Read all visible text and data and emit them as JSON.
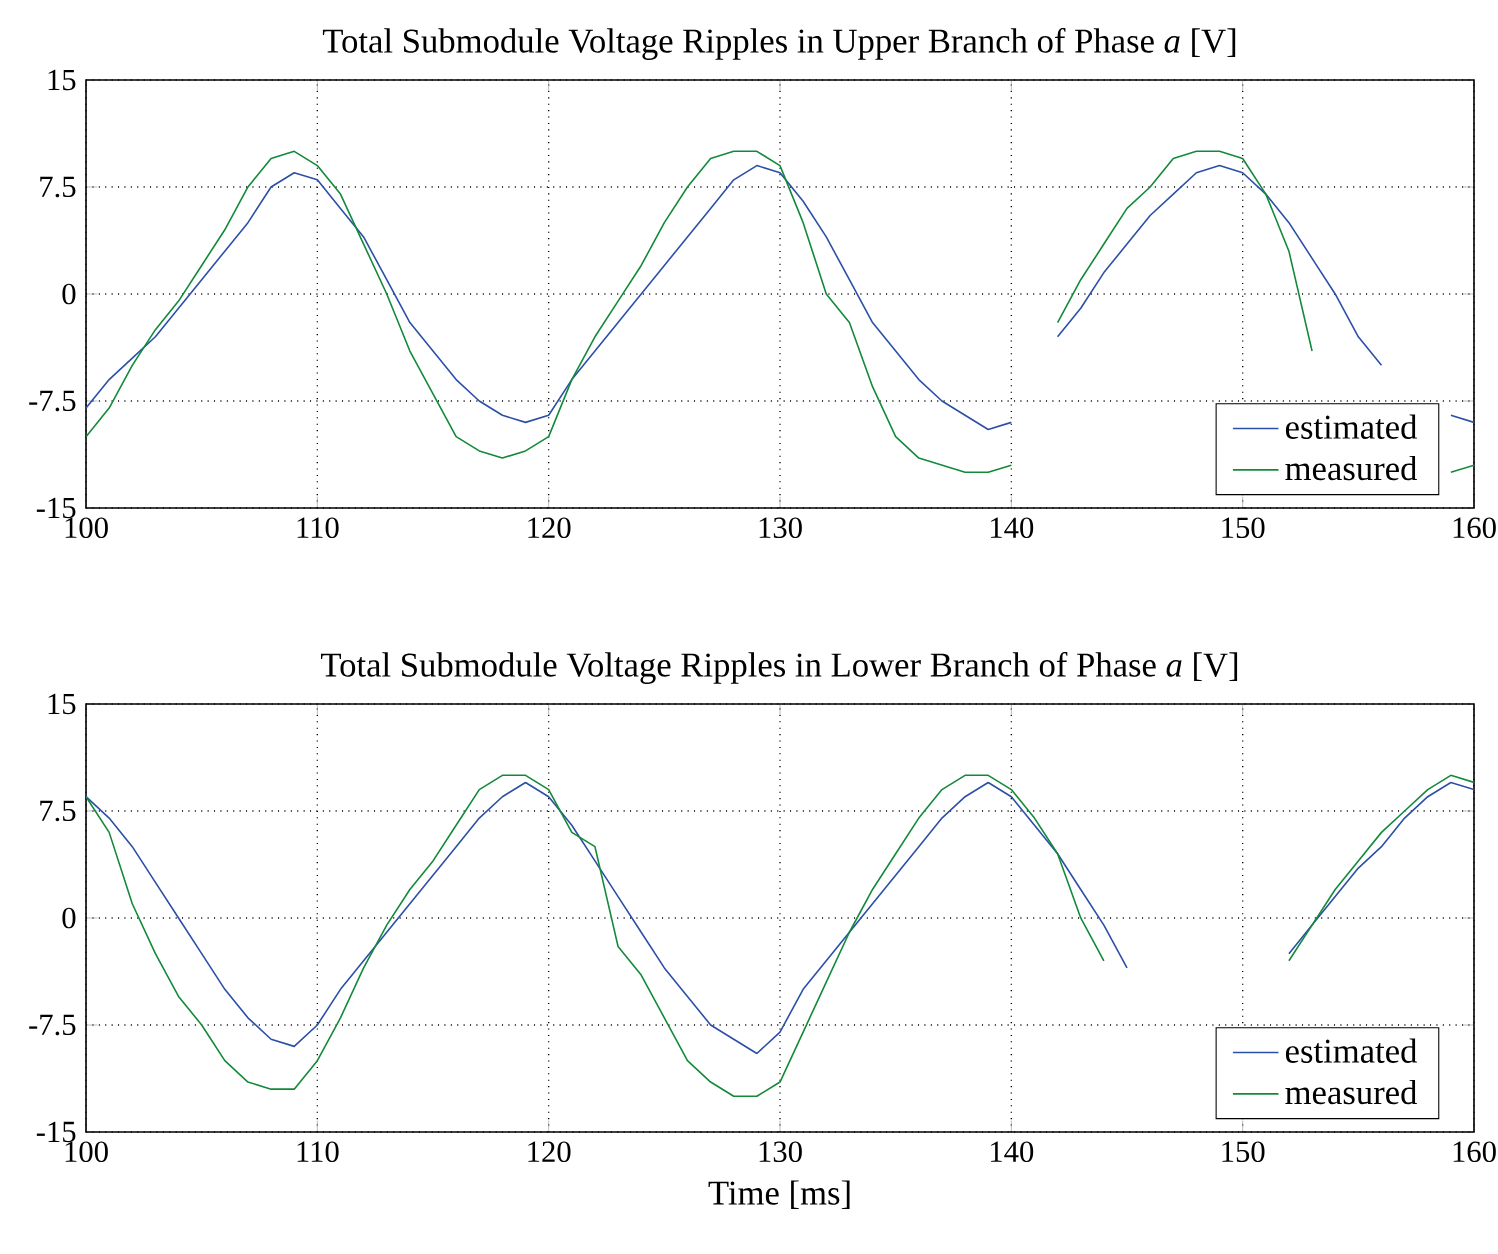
{
  "chart_data": [
    {
      "type": "line",
      "title": "Total Submodule Voltage Ripples in Upper Branch of Phase *a* [V]",
      "x": [
        100,
        101,
        102,
        103,
        104,
        105,
        106,
        107,
        108,
        109,
        110,
        111,
        112,
        113,
        114,
        115,
        116,
        117,
        118,
        119,
        120,
        121,
        122,
        123,
        124,
        125,
        126,
        127,
        128,
        129,
        130,
        131,
        132,
        133,
        134,
        135,
        136,
        137,
        138,
        139,
        140,
        141,
        142,
        143,
        144,
        145,
        146,
        147,
        148,
        149,
        150,
        151,
        152,
        153,
        154,
        155,
        156,
        157,
        158,
        159,
        160
      ],
      "series": [
        {
          "name": "estimated",
          "color": "#2c4fa8",
          "values": [
            -8,
            -6,
            -4.5,
            -3,
            -1,
            1,
            3,
            5,
            7.5,
            8.5,
            8,
            6,
            4,
            1,
            -2,
            -4,
            -6,
            -7.5,
            -8.5,
            -9,
            -8.5,
            -6,
            -4,
            -2,
            0,
            2,
            4,
            6,
            8,
            9,
            8.5,
            6.5,
            4,
            1,
            -2,
            -4,
            -6,
            -7.5,
            -8.5,
            -9.5,
            -9,
            null,
            -3,
            -1,
            1.5,
            3.5,
            5.5,
            7,
            8.5,
            9,
            8.5,
            7,
            5,
            2.5,
            0,
            -3,
            -5,
            null,
            null,
            -8.5,
            -9
          ]
        },
        {
          "name": "measured",
          "color": "#138a3a",
          "values": [
            -10,
            -8,
            -5,
            -2.5,
            -0.5,
            2,
            4.5,
            7.5,
            9.5,
            10,
            9,
            7,
            3.5,
            0,
            -4,
            -7,
            -10,
            -11,
            -11.5,
            -11,
            -10,
            -6,
            -3,
            -0.5,
            2,
            5,
            7.5,
            9.5,
            10,
            10,
            9,
            5,
            0,
            -2,
            -6.5,
            -10,
            -11.5,
            -12,
            -12.5,
            -12.5,
            -12,
            null,
            -2,
            1,
            3.5,
            6,
            7.5,
            9.5,
            10,
            10,
            9.5,
            7,
            3,
            -4,
            null,
            null,
            null,
            null,
            null,
            -12.5,
            -12
          ]
        }
      ],
      "xlim": [
        100,
        160
      ],
      "ylim": [
        -15,
        15
      ],
      "xticks": [
        100,
        110,
        120,
        130,
        140,
        150,
        160
      ],
      "yticks": [
        -15,
        -7.5,
        0,
        7.5,
        15
      ],
      "grid": true,
      "legend": "bottom right",
      "line_style": "solid",
      "marker": "none"
    },
    {
      "type": "line",
      "title": "Total Submodule Voltage Ripples in Lower Branch of Phase *a* [V]",
      "xlabel": "Time [ms]",
      "x": [
        100,
        101,
        102,
        103,
        104,
        105,
        106,
        107,
        108,
        109,
        110,
        111,
        112,
        113,
        114,
        115,
        116,
        117,
        118,
        119,
        120,
        121,
        122,
        123,
        124,
        125,
        126,
        127,
        128,
        129,
        130,
        131,
        132,
        133,
        134,
        135,
        136,
        137,
        138,
        139,
        140,
        141,
        142,
        143,
        144,
        145,
        146,
        147,
        148,
        149,
        150,
        151,
        152,
        153,
        154,
        155,
        156,
        157,
        158,
        159,
        160
      ],
      "series": [
        {
          "name": "estimated",
          "color": "#2c4fa8",
          "values": [
            8.5,
            7,
            5,
            2.5,
            0,
            -2.5,
            -5,
            -7,
            -8.5,
            -9,
            -7.5,
            -5,
            -3,
            -1,
            1,
            3,
            5,
            7,
            8.5,
            9.5,
            8.5,
            6.5,
            4,
            1.5,
            -1,
            -3.5,
            -5.5,
            -7.5,
            -8.5,
            -9.5,
            -8,
            -5,
            -3,
            -1,
            1,
            3,
            5,
            7,
            8.5,
            9.5,
            8.5,
            6.5,
            4.5,
            2,
            -0.5,
            -3.5,
            null,
            null,
            null,
            null,
            null,
            null,
            -2.5,
            -0.5,
            1.5,
            3.5,
            5,
            7,
            8.5,
            9.5,
            9
          ]
        },
        {
          "name": "measured",
          "color": "#138a3a",
          "values": [
            8.5,
            6,
            1,
            -2.5,
            -5.5,
            -7.5,
            -10,
            -11.5,
            -12,
            -12,
            -10,
            -7,
            -3.5,
            -0.5,
            2,
            4,
            6.5,
            9,
            10,
            10,
            9,
            6,
            5,
            -2,
            -4,
            -7,
            -10,
            -11.5,
            -12.5,
            -12.5,
            -11.5,
            -8,
            -4.5,
            -1,
            2,
            4.5,
            7,
            9,
            10,
            10,
            9,
            7,
            4.5,
            0,
            -3,
            null,
            null,
            null,
            null,
            null,
            null,
            null,
            -3,
            -0.5,
            2,
            4,
            6,
            7.5,
            9,
            10,
            9.5
          ]
        }
      ],
      "xlim": [
        100,
        160
      ],
      "ylim": [
        -15,
        15
      ],
      "xticks": [
        100,
        110,
        120,
        130,
        140,
        150,
        160
      ],
      "yticks": [
        -15,
        -7.5,
        0,
        7.5,
        15
      ],
      "grid": true,
      "legend": "bottom right",
      "line_style": "solid",
      "marker": "none"
    }
  ]
}
